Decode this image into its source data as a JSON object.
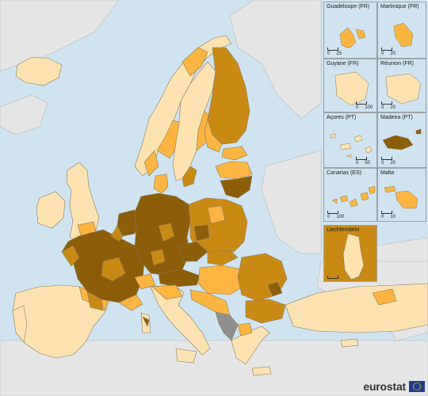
{
  "colors": {
    "sea": "#cfe4f0",
    "non_eu_land": "#e6e6e6",
    "border": "#8a7a5a",
    "class_1": "#fde3b1",
    "class_2": "#fcb540",
    "class_3": "#c98a14",
    "class_4": "#8c5e0a",
    "no_data": "#8f8f8f"
  },
  "insets": [
    {
      "id": "guadeloupe",
      "title": "Guadeloupe (FR)",
      "scale_labels": [
        "0",
        "25"
      ]
    },
    {
      "id": "martinique",
      "title": "Martinique (FR)",
      "scale_labels": [
        "0",
        "20"
      ]
    },
    {
      "id": "guyane",
      "title": "Guyane (FR)",
      "scale_labels": [
        "0",
        "100"
      ]
    },
    {
      "id": "reunion",
      "title": "Réunion (FR)",
      "scale_labels": [
        "0",
        "20"
      ]
    },
    {
      "id": "acores",
      "title": "Açores (PT)",
      "scale_labels": [
        "0",
        "50"
      ]
    },
    {
      "id": "madeira",
      "title": "Madeira (PT)",
      "scale_labels": [
        "0",
        "20"
      ]
    },
    {
      "id": "canarias",
      "title": "Canarias (ES)",
      "scale_labels": [
        "0",
        "100"
      ]
    },
    {
      "id": "malta",
      "title": "Malta",
      "scale_labels": [
        "0",
        "10"
      ]
    },
    {
      "id": "liechtenstein",
      "title": "Liechtenstein",
      "scale_labels": [
        "",
        ""
      ]
    }
  ],
  "brand": {
    "name": "eurostat",
    "flag_icon": "eu-flag-icon"
  }
}
